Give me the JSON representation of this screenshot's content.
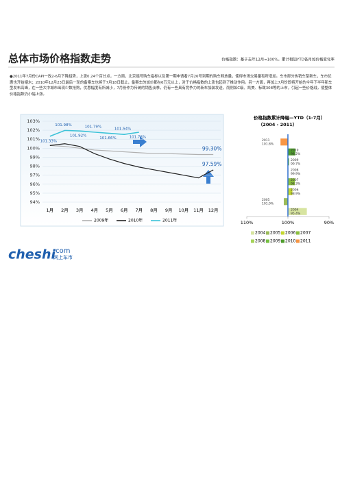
{
  "header": {
    "title": "总体市场价格指数走势",
    "note": "价格指数：基于去年12月=100%，累计相加YTD各月如价格变化率"
  },
  "paragraph": "●2011年7月份CAPI一改2-6月下降趋势，上涨0.24个百分点，一方面，北京摇号购车指标以及第一期申请者7月26号到期的购车释放量，使得市场交易量有所增加。车市部分热销车型新车，车市优惠也开始缩水；2010年12月23日最后一轮的备案车也将于7月18日截止，备案车的加价都在6万元以上，对于价格指数的上涨也起到了推动作用。另一方面，再加上7月份即将开始的今年下半年新车型发布高峰，在一些大中城市出现少数抢购，优惠幅度有所减小，7月份作为传统的销售淡季，仍有一些具有竞争力的新车加装发送，而例如C级、凯美、标致308等的上市，引起一些价格战，使整体价格指数仍小幅上涨。",
  "chart_data": [
    {
      "type": "line",
      "categories": [
        "1月",
        "2月",
        "3月",
        "4月",
        "5月",
        "6月",
        "7月",
        "8月",
        "9月",
        "10月",
        "11月",
        "12月"
      ],
      "ylim": [
        94,
        103
      ],
      "yticks": [
        {
          "value": 94,
          "label": "94%"
        },
        {
          "value": 95,
          "label": "95%"
        },
        {
          "value": 96,
          "label": "96%"
        },
        {
          "value": 97,
          "label": "97%"
        },
        {
          "value": 98,
          "label": "98%"
        },
        {
          "value": 99,
          "label": "99%"
        },
        {
          "value": 100,
          "label": "100%"
        },
        {
          "value": 101,
          "label": "101%"
        },
        {
          "value": 102,
          "label": "102%"
        },
        {
          "value": 103,
          "label": "103%"
        }
      ],
      "grid": true,
      "series": [
        {
          "name": "2009年",
          "color": "#b0b0b0",
          "values": [
            100.3,
            100.2,
            100.0,
            99.8,
            99.7,
            99.6,
            99.5,
            99.4,
            99.4,
            99.35,
            99.3,
            99.3
          ],
          "value_labels": [
            null,
            null,
            null,
            null,
            null,
            null,
            null,
            null,
            null,
            null,
            null,
            "99.30%"
          ]
        },
        {
          "name": "2010年",
          "color": "#222222",
          "values": [
            100.3,
            100.5,
            100.2,
            99.4,
            98.8,
            98.3,
            97.9,
            97.6,
            97.3,
            97.0,
            96.7,
            97.59
          ],
          "value_labels": [
            null,
            null,
            null,
            null,
            null,
            null,
            null,
            null,
            null,
            null,
            null,
            "97.59%"
          ]
        },
        {
          "name": "2011年",
          "color": "#3cc3d8",
          "values": [
            101.33,
            101.98,
            101.92,
            101.79,
            101.66,
            101.54,
            101.78,
            null,
            null,
            null,
            null,
            null
          ],
          "value_labels": [
            "101.33%",
            "101.98%",
            "101.92%",
            "101.79%",
            "101.66%",
            "101.54%",
            "101.78%",
            null,
            null,
            null,
            null,
            null
          ]
        }
      ]
    },
    {
      "type": "hbar",
      "title": "价格指数累计降幅—YTD（1-7月）",
      "subtitle": "（2004 - 2011）",
      "categories": [
        "2011",
        "2010",
        "2009",
        "2008",
        "2007",
        "2006",
        "2005",
        "2004"
      ],
      "values": [
        101.8,
        98.2,
        99.7,
        99.9,
        98.3,
        98.9,
        101.0,
        95.4
      ],
      "value_labels": [
        "101.8%",
        "98.2%",
        "99.7%",
        "99.9%",
        "98.3%",
        "98.9%",
        "101.0%",
        "95.4%"
      ],
      "colors": [
        "#f79646",
        "#4f9d2d",
        "#77c043",
        "#a6d35a",
        "#8cbf3f",
        "#c4d730",
        "#9bbb59",
        "#d7e4a0"
      ],
      "xlim": [
        110,
        90
      ],
      "xticks": [
        {
          "value": 110,
          "label": "110%"
        },
        {
          "value": 100,
          "label": "100%"
        },
        {
          "value": 90,
          "label": "90%"
        }
      ]
    }
  ],
  "logo": {
    "brand": "cheshi",
    "domain": ".com",
    "tagline": "网上车市"
  }
}
